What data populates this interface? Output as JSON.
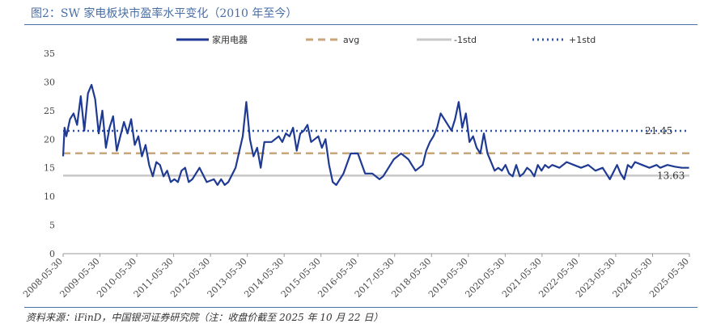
{
  "header": {
    "title": "图2：SW 家电板块市盈率水平变化（2010 年至今）"
  },
  "footer": {
    "source": "资料来源：iFinD，中国银河证券研究院（注：收盘价截至 2025 年 10 月 22 日）"
  },
  "colors": {
    "series": "#1f3a93",
    "avg": "#c9a57a",
    "minus1std": "#c8c8c8",
    "plus1std": "#2f55a4",
    "axis": "#999999"
  },
  "chart_data": {
    "type": "line",
    "title": "",
    "xlabel": "",
    "ylabel": "",
    "ylim": [
      0,
      35
    ],
    "yticks": [
      0,
      5,
      10,
      15,
      20,
      25,
      30,
      35
    ],
    "xlim": [
      2008.41,
      2025.81
    ],
    "xtick_labels": [
      "2008-05-30",
      "2009-05-30",
      "2010-05-30",
      "2011-05-30",
      "2012-05-30",
      "2013-05-30",
      "2014-05-30",
      "2015-05-30",
      "2016-05-30",
      "2017-05-30",
      "2018-05-30",
      "2019-05-30",
      "2020-05-30",
      "2021-05-30",
      "2022-05-30",
      "2023-05-30",
      "2024-05-30",
      "2025-05-30"
    ],
    "legend": [
      "家用电器",
      "avg",
      "-1std",
      "+1std"
    ],
    "legend_position": "top",
    "annotations": [
      "21.45",
      "13.63"
    ],
    "series": [
      {
        "name": "家用电器",
        "x": [
          2008.41,
          2008.45,
          2008.5,
          2008.6,
          2008.7,
          2008.8,
          2008.9,
          2009.0,
          2009.1,
          2009.2,
          2009.3,
          2009.4,
          2009.5,
          2009.6,
          2009.7,
          2009.8,
          2009.9,
          2010.0,
          2010.1,
          2010.2,
          2010.3,
          2010.4,
          2010.5,
          2010.6,
          2010.7,
          2010.8,
          2010.9,
          2011.0,
          2011.1,
          2011.2,
          2011.3,
          2011.4,
          2011.5,
          2011.6,
          2011.7,
          2011.8,
          2011.9,
          2012.0,
          2012.2,
          2012.4,
          2012.6,
          2012.7,
          2012.8,
          2012.9,
          2013.0,
          2013.2,
          2013.4,
          2013.5,
          2013.6,
          2013.7,
          2013.8,
          2013.9,
          2014.0,
          2014.2,
          2014.4,
          2014.5,
          2014.6,
          2014.7,
          2014.8,
          2014.9,
          2015.0,
          2015.1,
          2015.2,
          2015.3,
          2015.4,
          2015.5,
          2015.6,
          2015.7,
          2015.8,
          2015.9,
          2016.0,
          2016.2,
          2016.4,
          2016.6,
          2016.8,
          2017.0,
          2017.2,
          2017.3,
          2017.4,
          2017.6,
          2017.8,
          2018.0,
          2018.2,
          2018.4,
          2018.5,
          2018.6,
          2018.7,
          2018.8,
          2018.9,
          2019.0,
          2019.1,
          2019.2,
          2019.3,
          2019.4,
          2019.5,
          2019.6,
          2019.7,
          2019.8,
          2019.9,
          2020.0,
          2020.1,
          2020.2,
          2020.3,
          2020.4,
          2020.5,
          2020.6,
          2020.7,
          2020.8,
          2020.9,
          2021.0,
          2021.1,
          2021.2,
          2021.3,
          2021.4,
          2021.5,
          2021.6,
          2021.7,
          2021.8,
          2021.9,
          2022.0,
          2022.2,
          2022.4,
          2022.6,
          2022.8,
          2023.0,
          2023.2,
          2023.4,
          2023.6,
          2023.8,
          2023.9,
          2024.0,
          2024.1,
          2024.2,
          2024.3,
          2024.5,
          2024.7,
          2024.9,
          2025.0,
          2025.2,
          2025.4,
          2025.6,
          2025.8
        ],
        "values": [
          17.0,
          22.0,
          20.5,
          23.5,
          24.5,
          22.5,
          27.5,
          21.5,
          28.0,
          29.5,
          27.0,
          21.0,
          25.0,
          18.5,
          22.0,
          24.0,
          18.0,
          20.5,
          23.0,
          21.0,
          23.5,
          19.0,
          20.5,
          17.0,
          19.0,
          15.5,
          13.5,
          16.0,
          15.5,
          13.5,
          14.5,
          12.5,
          13.0,
          12.5,
          14.5,
          15.0,
          12.5,
          13.0,
          15.0,
          12.5,
          13.0,
          12.0,
          13.0,
          12.0,
          12.5,
          15.0,
          20.5,
          26.5,
          20.0,
          17.0,
          18.5,
          15.0,
          19.5,
          19.5,
          20.5,
          19.5,
          21.0,
          20.5,
          22.0,
          18.0,
          21.0,
          21.5,
          22.5,
          19.5,
          20.0,
          20.5,
          18.5,
          20.0,
          15.5,
          12.5,
          12.0,
          14.0,
          17.5,
          17.5,
          14.0,
          14.0,
          13.0,
          13.5,
          14.5,
          16.5,
          17.5,
          16.5,
          14.5,
          15.5,
          18.0,
          19.5,
          20.5,
          22.0,
          24.5,
          23.5,
          22.5,
          21.5,
          23.5,
          26.5,
          22.0,
          24.5,
          19.5,
          20.5,
          18.5,
          17.5,
          21.0,
          17.5,
          16.0,
          14.5,
          15.0,
          14.5,
          15.5,
          14.0,
          13.5,
          15.5,
          13.5,
          14.0,
          15.0,
          14.5,
          13.5,
          15.5,
          14.5,
          15.5,
          15.0,
          15.5,
          15.0,
          16.0,
          15.5,
          15.0,
          15.5,
          14.5,
          15.0,
          13.0,
          15.5,
          14.0,
          13.0,
          15.5,
          15.0,
          16.0,
          15.5,
          15.0,
          15.5,
          15.0,
          15.5,
          15.2,
          15.0,
          15.0
        ],
        "style": "solid"
      },
      {
        "name": "avg",
        "constant": 17.54,
        "style": "dashed"
      },
      {
        "name": "-1std",
        "constant": 13.63,
        "style": "solid"
      },
      {
        "name": "+1std",
        "constant": 21.45,
        "style": "dotted"
      }
    ]
  }
}
